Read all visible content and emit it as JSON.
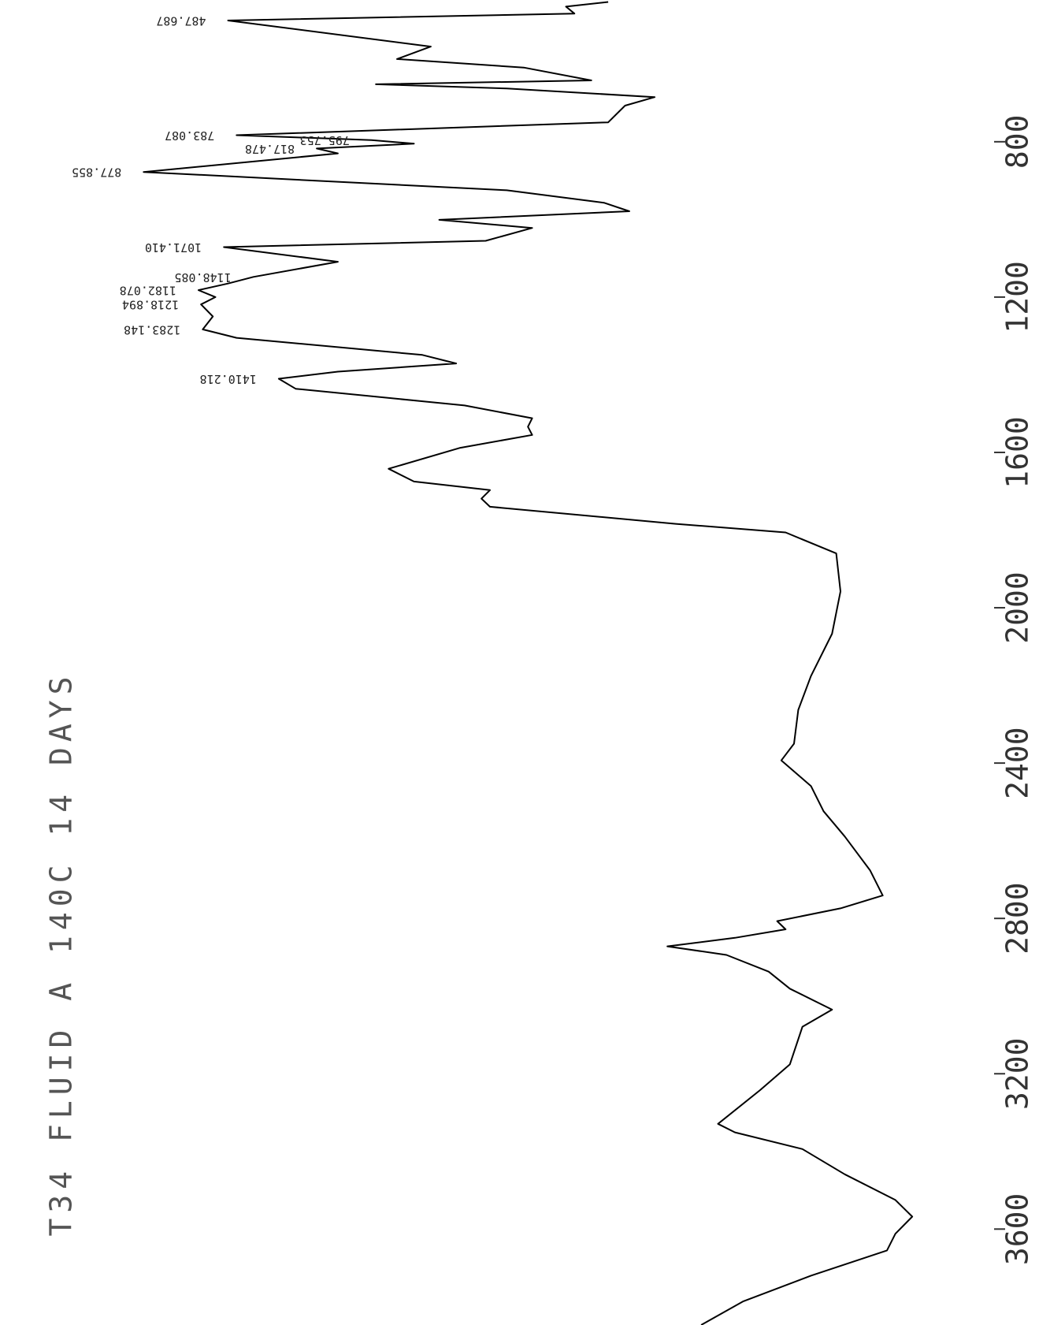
{
  "chart_data": {
    "type": "line",
    "title": "T34 FLUID A 140C 14 DAYS",
    "x": [
      440,
      452,
      470,
      487.687,
      555,
      587,
      609,
      642,
      652,
      663,
      685,
      707,
      750,
      783.087,
      795.753,
      805,
      817.478,
      830,
      877.855,
      925,
      957,
      979,
      1001,
      1022,
      1055,
      1071.41,
      1109,
      1148.085,
      1165,
      1182.078,
      1200,
      1218.894,
      1250,
      1283.148,
      1305,
      1349,
      1371,
      1392,
      1410.218,
      1436,
      1479,
      1512,
      1534,
      1555,
      1588,
      1642,
      1675,
      1697,
      1719,
      1740,
      1784,
      1806,
      1860,
      1958,
      2067,
      2176,
      2263,
      2350,
      2393,
      2459,
      2524,
      2589,
      2676,
      2741,
      2774,
      2807,
      2828,
      2850,
      2872,
      2894,
      2937,
      2981,
      3035,
      3079,
      3176,
      3242,
      3329,
      3351,
      3394,
      3459,
      3525,
      3568,
      3612,
      3655,
      3720,
      3786,
      3847
    ],
    "series": [
      {
        "color": "#000000",
        "values": [
          72,
          67,
          68,
          27,
          51,
          47,
          62,
          70,
          44.5,
          60,
          77.5,
          74,
          72,
          28,
          44,
          49,
          37.5,
          40,
          17,
          60,
          71.5,
          74.5,
          52,
          63,
          57.5,
          26.5,
          40,
          30,
          27,
          23.5,
          25.5,
          23.8,
          25.2,
          24,
          28,
          50,
          54,
          40,
          33,
          35,
          55,
          63,
          62.5,
          63,
          54.5,
          46,
          49,
          58,
          57,
          58,
          80,
          93,
          99,
          99.5,
          98.5,
          96,
          94.5,
          94,
          92.5,
          96,
          97.5,
          100,
          103,
          104.5,
          99.5,
          92,
          93,
          87,
          79,
          86,
          91,
          93.5,
          98.5,
          95,
          93.5,
          90,
          85,
          87,
          95,
          100,
          106,
          108,
          106,
          105,
          96,
          88,
          83
        ]
      }
    ],
    "xlim": [
      435,
      3847
    ],
    "ylim": [
      0,
      123
    ],
    "xticks": [
      800,
      1200,
      1600,
      2000,
      2400,
      2800,
      3200,
      3600
    ],
    "peak_labels": [
      487.687,
      783.087,
      795.753,
      817.478,
      877.855,
      {
        "value": 1071.41,
        "label": "1071.410"
      },
      1148.085,
      1182.078,
      1218.894,
      1283.148,
      1410.218
    ]
  }
}
